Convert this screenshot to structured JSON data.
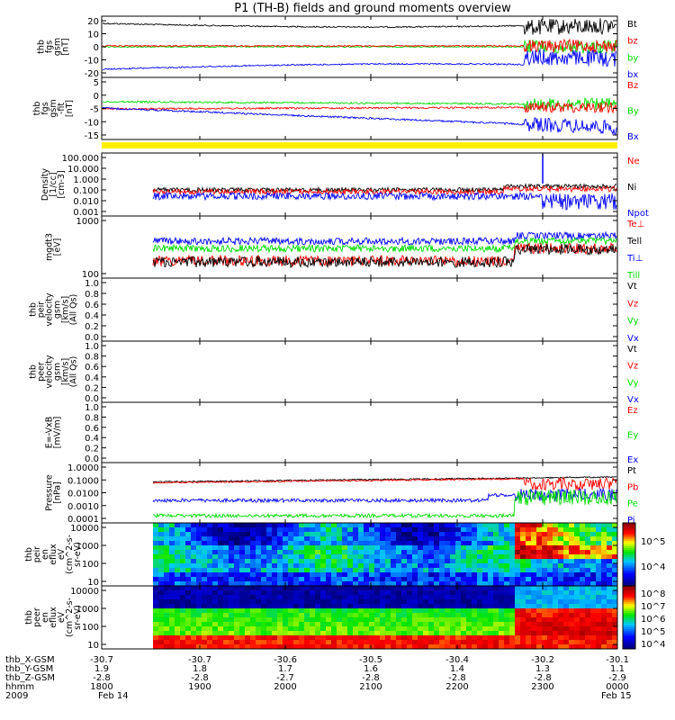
{
  "title": "P1 (TH-B) fields and ground moments overview",
  "colors": {
    "black": "#000000",
    "red": "#ff0000",
    "green": "#00dd00",
    "blue": "#0000ff",
    "yellow": "#ffee00"
  },
  "chart_data": [
    {
      "id": "p1",
      "type": "line",
      "ylabel": [
        "thb",
        "fgs",
        "gsm",
        "[nT]"
      ],
      "yticks": [
        "20",
        "10",
        "0",
        "-10",
        "-20"
      ],
      "legend": [
        {
          "text": "Bt",
          "color": "black"
        },
        {
          "text": "bz",
          "color": "red"
        },
        {
          "text": "by",
          "color": "green"
        },
        {
          "text": "bx",
          "color": "blue"
        }
      ]
    },
    {
      "id": "p2",
      "type": "line",
      "ylabel": [
        "thb",
        "fgs",
        "gsm",
        "-fit",
        "[nT]"
      ],
      "yticks": [
        "5",
        "0",
        "-5",
        "-10",
        "-15"
      ],
      "legend": [
        {
          "text": "Bz",
          "color": "red"
        },
        {
          "text": "By",
          "color": "green"
        },
        {
          "text": "Bx",
          "color": "blue"
        }
      ]
    },
    {
      "id": "p3",
      "type": "line",
      "ylabel": [
        "Density",
        "[1/cc]",
        "[cm-3]"
      ],
      "yticks": [
        "100.000",
        "10.000",
        "1.000",
        "0.100",
        "0.010",
        "0.001"
      ],
      "log": true,
      "legend": [
        {
          "text": "Ne",
          "color": "red"
        },
        {
          "text": "Ni",
          "color": "black"
        },
        {
          "text": "Npot",
          "color": "blue"
        }
      ]
    },
    {
      "id": "p4",
      "type": "line",
      "ylabel": [
        "mgdt3",
        "[eV]"
      ],
      "yticks": [
        "1000",
        "100"
      ],
      "log": true,
      "legend": [
        {
          "text": "Te⊥",
          "color": "red"
        },
        {
          "text": "Tell",
          "color": "black"
        },
        {
          "text": "Ti⊥",
          "color": "blue"
        },
        {
          "text": "Till",
          "color": "green"
        }
      ]
    },
    {
      "id": "p5",
      "type": "line",
      "ylabel": [
        "thb",
        "peir",
        "velocity",
        "gsm",
        "[km/s]",
        "(All Qs)"
      ],
      "yticks": [
        "1.0",
        "0.8",
        "0.6",
        "0.4",
        "0.2",
        "0.0"
      ],
      "legend": [
        {
          "text": "Vt",
          "color": "black"
        },
        {
          "text": "Vz",
          "color": "red"
        },
        {
          "text": "Vy",
          "color": "green"
        },
        {
          "text": "Vx",
          "color": "blue"
        }
      ]
    },
    {
      "id": "p6",
      "type": "line",
      "ylabel": [
        "thb",
        "peer",
        "velocity",
        "gsm",
        "[km/s]",
        "(All Qs)"
      ],
      "yticks": [
        "1.0",
        "0.8",
        "0.6",
        "0.4",
        "0.2",
        "0.0"
      ],
      "legend": [
        {
          "text": "Vt",
          "color": "black"
        },
        {
          "text": "Vz",
          "color": "red"
        },
        {
          "text": "Vy",
          "color": "green"
        },
        {
          "text": "Vx",
          "color": "blue"
        }
      ]
    },
    {
      "id": "p7",
      "type": "line",
      "ylabel": [
        "E=-VxB",
        "[mV/m]"
      ],
      "yticks": [
        "1.0",
        "0.8",
        "0.6",
        "0.4",
        "0.2",
        "0.0"
      ],
      "legend": [
        {
          "text": "Ez",
          "color": "red"
        },
        {
          "text": "Ey",
          "color": "green"
        },
        {
          "text": "Ex",
          "color": "blue"
        }
      ]
    },
    {
      "id": "p8",
      "type": "line",
      "ylabel": [
        "Pressure",
        "[nPa]"
      ],
      "yticks": [
        "1.0000",
        "0.1000",
        "0.0100",
        "0.0010",
        "0.0001"
      ],
      "log": true,
      "legend": [
        {
          "text": "Pt",
          "color": "black"
        },
        {
          "text": "Pb",
          "color": "red"
        },
        {
          "text": "Pe",
          "color": "green"
        },
        {
          "text": "Pi",
          "color": "blue"
        }
      ]
    },
    {
      "id": "p9",
      "type": "heatmap",
      "ylabel": [
        "thb",
        "peir",
        "en",
        "eflux",
        "eV",
        "(cm^2-s-",
        "sr-eV)"
      ],
      "yticks": [
        "10000",
        "1000",
        "100",
        "10"
      ],
      "colorbar": [
        "10^5",
        "10^4"
      ]
    },
    {
      "id": "p10",
      "type": "heatmap",
      "ylabel": [
        "thb",
        "peer",
        "en",
        "eflux",
        "eV",
        "(cm^2-s-",
        "sr-eV)"
      ],
      "yticks": [
        "10000",
        "1000",
        "100",
        "10"
      ],
      "colorbar": [
        "10^8",
        "10^7",
        "10^6",
        "10^5",
        "10^4"
      ]
    }
  ],
  "xaxis": {
    "rows": [
      {
        "label": "thb_X-GSM",
        "values": [
          "-30.7",
          "-30.7",
          "-30.6",
          "-30.5",
          "-30.4",
          "-30.2",
          "-30.1"
        ]
      },
      {
        "label": "thb_Y-GSM",
        "values": [
          "1.9",
          "1.8",
          "1.7",
          "1.6",
          "1.4",
          "1.3",
          "1.1"
        ]
      },
      {
        "label": "thb_Z-GSM",
        "values": [
          "-2.8",
          "-2.8",
          "-2.7",
          "-2.8",
          "-2.8",
          "-2.8",
          "-2.9"
        ]
      },
      {
        "label": "hhmm",
        "values": [
          "1800",
          "1900",
          "2000",
          "2100",
          "2200",
          "2300",
          "0000"
        ]
      },
      {
        "label": "2009",
        "values": [
          "Feb 14",
          "",
          "",
          "",
          "",
          "",
          "Feb 15"
        ]
      }
    ]
  }
}
